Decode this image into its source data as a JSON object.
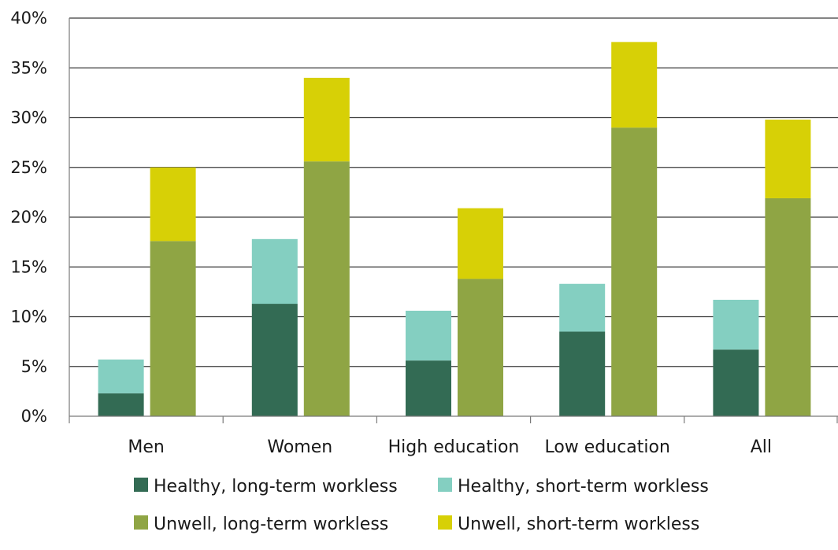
{
  "chart_data": {
    "type": "bar",
    "stacked": true,
    "categories": [
      "Men",
      "Women",
      "High education",
      "Low education",
      "All"
    ],
    "groups": [
      {
        "stack": "healthy",
        "series": [
          {
            "name": "Healthy, long-term workless",
            "color": "#336b54",
            "values": [
              2.3,
              11.3,
              5.6,
              8.5,
              6.7
            ]
          },
          {
            "name": "Healthy, short-term workless",
            "color": "#84cfc1",
            "values": [
              3.4,
              6.5,
              5.0,
              4.8,
              5.0
            ]
          }
        ]
      },
      {
        "stack": "unwell",
        "series": [
          {
            "name": "Unwell, long-term workless",
            "color": "#8fa544",
            "values": [
              17.6,
              25.6,
              13.8,
              29.0,
              21.9
            ]
          },
          {
            "name": "Unwell, short-term workless",
            "color": "#d7d006",
            "values": [
              7.4,
              8.4,
              7.1,
              8.6,
              7.9
            ]
          }
        ]
      }
    ],
    "title": "",
    "xlabel": "",
    "ylabel": "",
    "ylim": [
      0,
      40
    ],
    "yticks": [
      0,
      5,
      10,
      15,
      20,
      25,
      30,
      35,
      40
    ],
    "ytick_format": "%",
    "grid": true,
    "legend_position": "bottom",
    "legend": [
      [
        "Healthy, long-term workless",
        "Healthy, short-term workless"
      ],
      [
        "Unwell, long-term workless",
        "Unwell, short-term workless"
      ]
    ]
  }
}
